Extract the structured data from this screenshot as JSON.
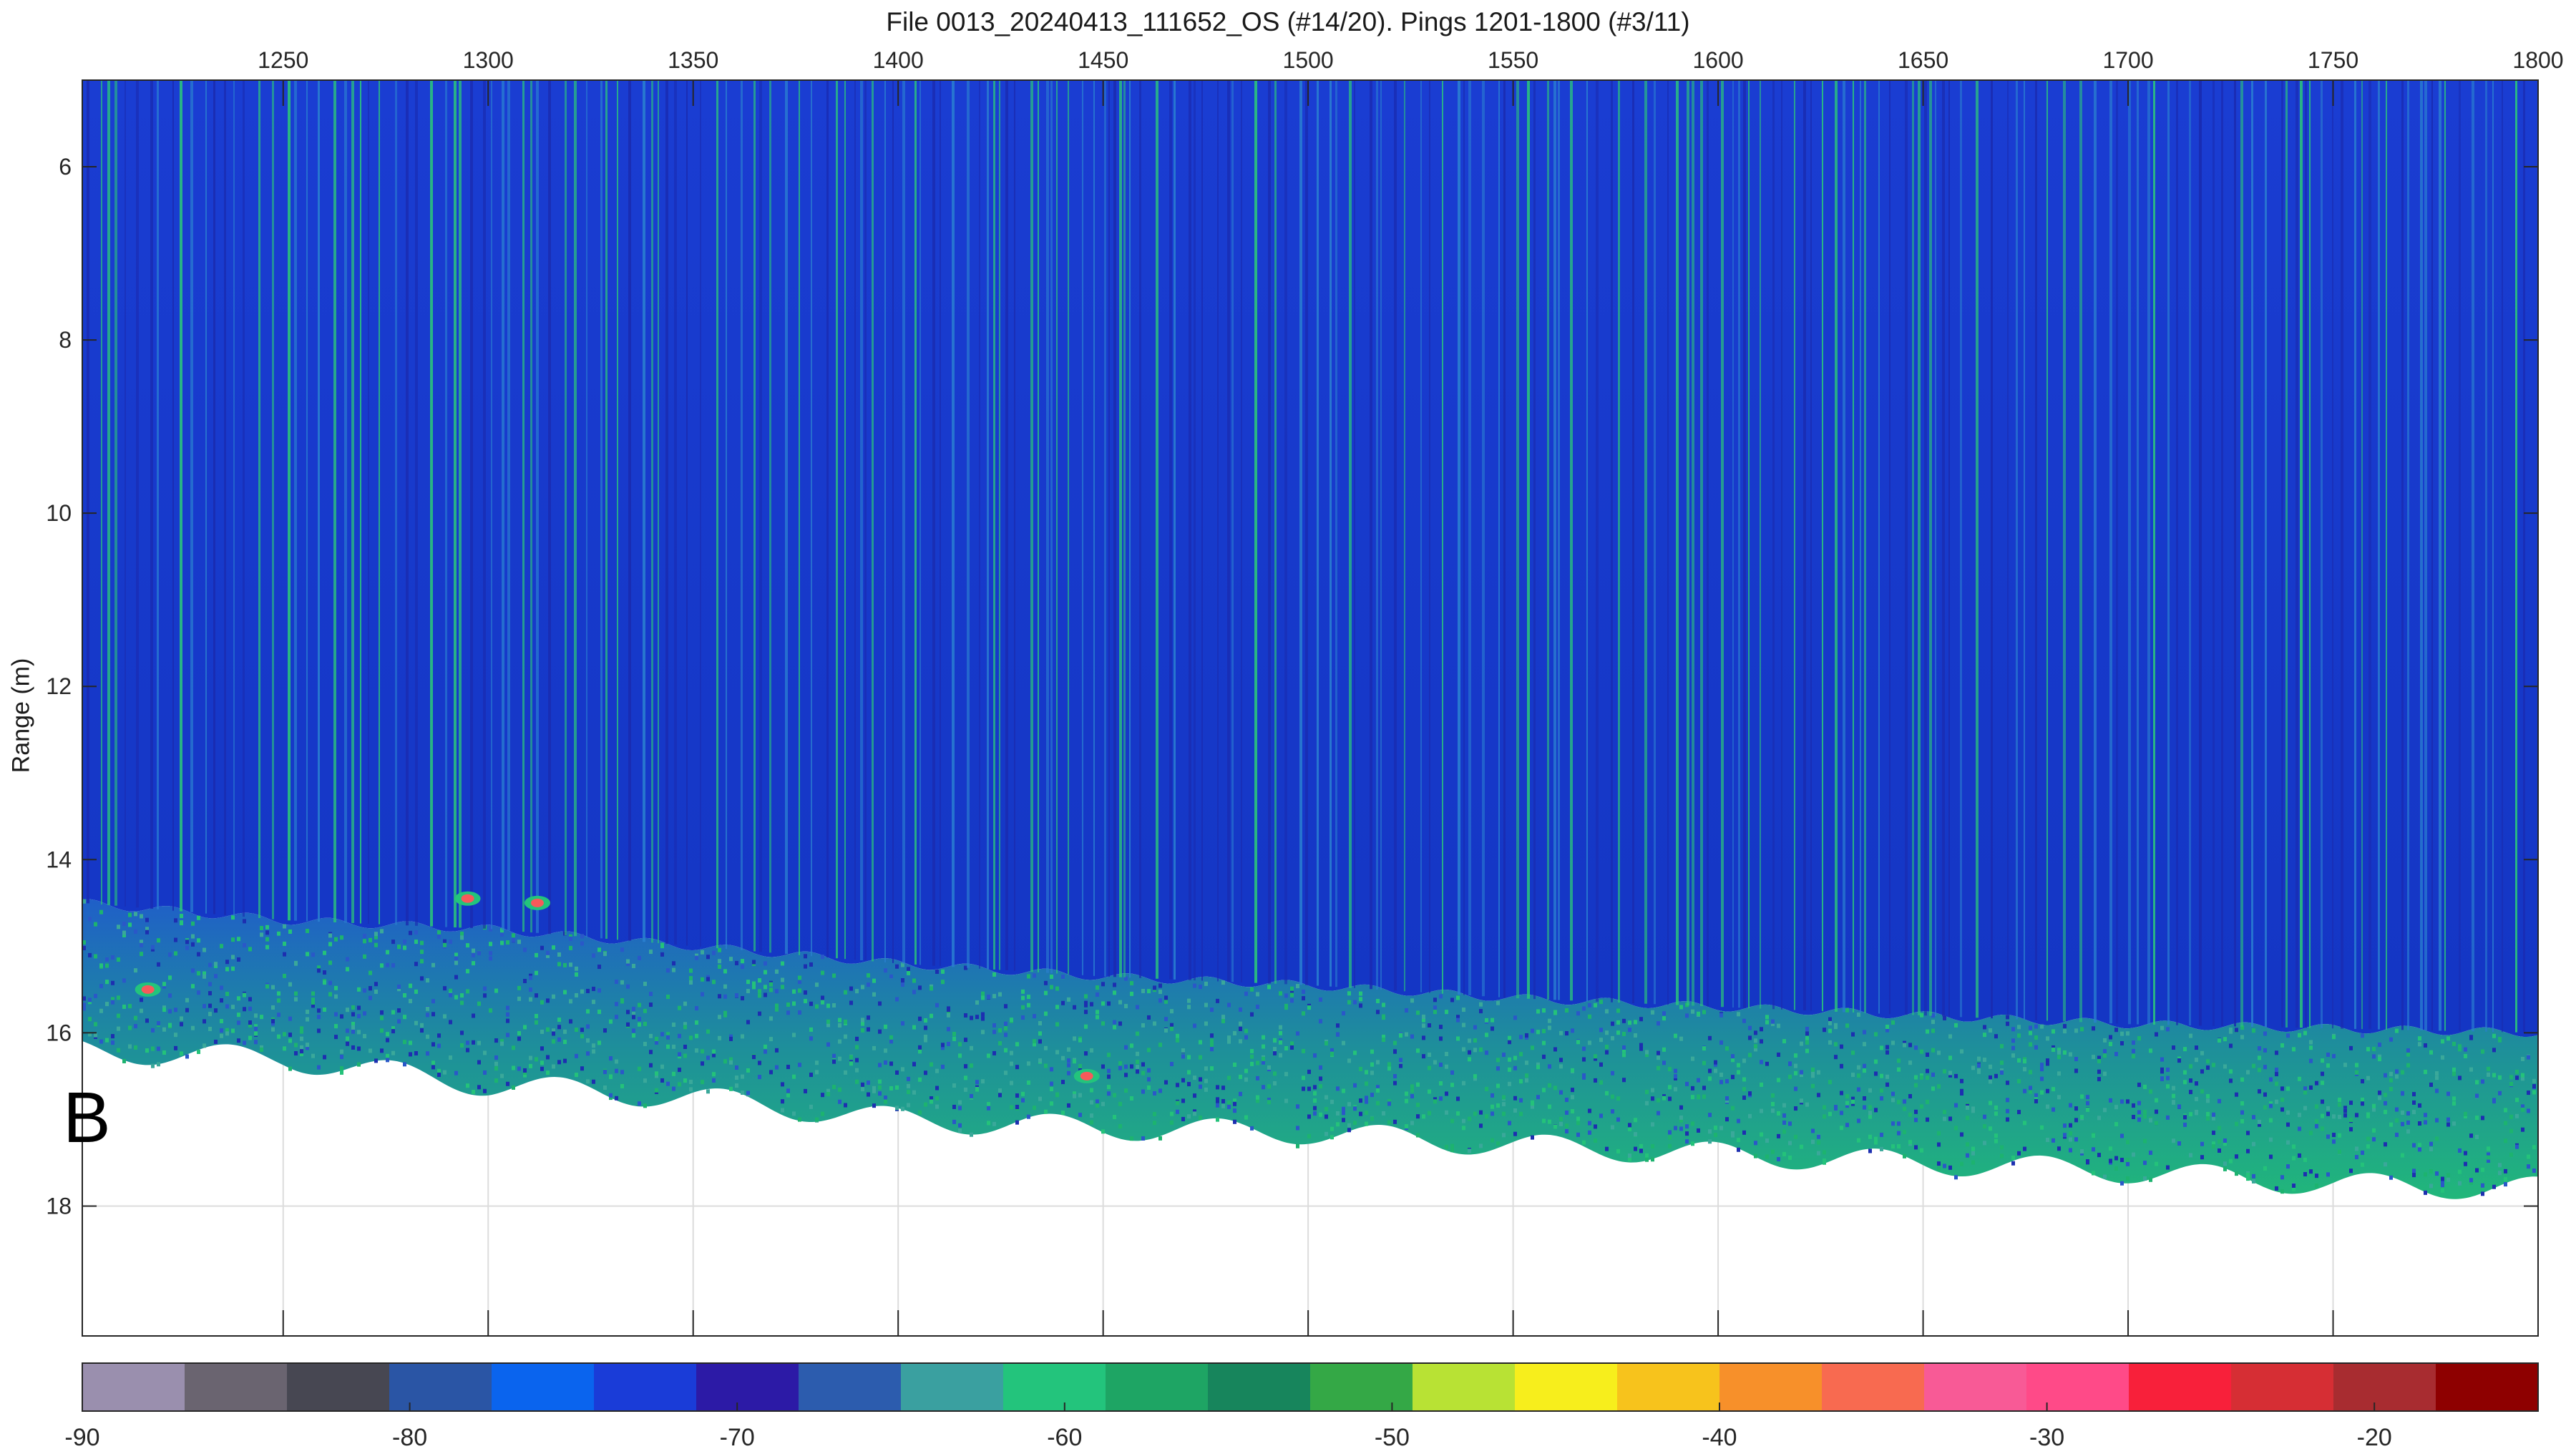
{
  "chart_data": {
    "type": "heatmap",
    "title": "File 0013_20240413_111652_OS (#14/20). Pings 1201-1800 (#3/11)",
    "xlabel": "",
    "ylabel": "Range (m)",
    "xlim": [
      1201,
      1800
    ],
    "ylim": [
      19.5,
      5
    ],
    "x_ticks": [
      1250,
      1300,
      1350,
      1400,
      1450,
      1500,
      1550,
      1600,
      1650,
      1700,
      1750,
      1800
    ],
    "y_ticks": [
      6,
      8,
      10,
      12,
      14,
      16,
      18
    ],
    "grid": true,
    "x_axis_location": "top",
    "y_direction": "reversed",
    "data_start_range": 5,
    "seafloor_onset": {
      "pings": [
        1201,
        1250,
        1300,
        1350,
        1400,
        1450,
        1500,
        1550,
        1600,
        1650,
        1700,
        1750,
        1800
      ],
      "range": [
        14.5,
        14.7,
        14.8,
        15.0,
        15.2,
        15.35,
        15.45,
        15.6,
        15.7,
        15.8,
        15.9,
        15.95,
        16.0
      ]
    },
    "bottom_limit": {
      "pings": [
        1201,
        1250,
        1300,
        1350,
        1400,
        1450,
        1500,
        1550,
        1600,
        1650,
        1700,
        1750,
        1800
      ],
      "range": [
        16.2,
        16.3,
        16.6,
        16.75,
        17.0,
        17.1,
        17.15,
        17.3,
        17.4,
        17.5,
        17.6,
        17.75,
        17.8
      ]
    },
    "targets": [
      {
        "ping": 1295,
        "range": 14.45,
        "level": -48
      },
      {
        "ping": 1312,
        "range": 14.5,
        "level": -45
      },
      {
        "ping": 1217,
        "range": 15.5,
        "level": -55
      },
      {
        "ping": 1446,
        "range": 16.5,
        "level": -52
      }
    ],
    "colorbar": {
      "min": -90,
      "max": -15,
      "ticks": [
        -90,
        -80,
        -70,
        -60,
        -50,
        -40,
        -30,
        -20
      ],
      "colors": [
        "#9a8fae",
        "#6a6470",
        "#474752",
        "#2a55a5",
        "#0a64ee",
        "#1a3cd8",
        "#2c1aa6",
        "#2c5cae",
        "#3aa0a0",
        "#23c47c",
        "#1ea564",
        "#17855c",
        "#34a846",
        "#b8e234",
        "#f7ee1c",
        "#f7c31c",
        "#f7902a",
        "#f86a50",
        "#f85a96",
        "#ff4a88",
        "#f8203a",
        "#d62e34",
        "#a82c30",
        "#8e0000"
      ]
    },
    "panel_letter": "B"
  }
}
